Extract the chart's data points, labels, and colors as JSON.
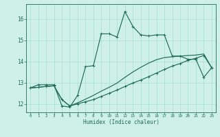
{
  "xlabel": "Humidex (Indice chaleur)",
  "bg_color": "#cff0e8",
  "grid_color": "#a8ddd2",
  "line_color": "#1e6b5a",
  "xlim": [
    -0.5,
    23.5
  ],
  "ylim": [
    11.6,
    16.7
  ],
  "xticks": [
    0,
    1,
    2,
    3,
    4,
    5,
    6,
    7,
    8,
    9,
    10,
    11,
    12,
    13,
    14,
    15,
    16,
    17,
    18,
    19,
    20,
    21,
    22,
    23
  ],
  "yticks": [
    12,
    13,
    14,
    15,
    16
  ],
  "line1_x": [
    0,
    1,
    2,
    3,
    4,
    5,
    6,
    7,
    8,
    9,
    10,
    11,
    12,
    13,
    14,
    15,
    16,
    17,
    18,
    19,
    20,
    21,
    22,
    23
  ],
  "line1_y": [
    12.75,
    12.9,
    12.9,
    12.9,
    11.9,
    11.85,
    12.4,
    13.75,
    13.8,
    15.3,
    15.3,
    15.15,
    16.35,
    15.65,
    15.25,
    15.2,
    15.25,
    15.25,
    14.25,
    14.25,
    14.1,
    14.1,
    13.25,
    13.7
  ],
  "line2_x": [
    0,
    1,
    2,
    3,
    4,
    5,
    6,
    7,
    8,
    9,
    10,
    11,
    12,
    13,
    14,
    15,
    16,
    17,
    18,
    19,
    20,
    21,
    22,
    23
  ],
  "line2_y": [
    12.75,
    12.78,
    12.82,
    12.85,
    12.2,
    11.9,
    12.0,
    12.1,
    12.2,
    12.35,
    12.5,
    12.65,
    12.82,
    12.98,
    13.12,
    13.28,
    13.45,
    13.62,
    13.78,
    13.9,
    14.05,
    14.15,
    14.28,
    13.7
  ],
  "line3_x": [
    0,
    1,
    2,
    3,
    4,
    5,
    6,
    7,
    8,
    9,
    10,
    11,
    12,
    13,
    14,
    15,
    16,
    17,
    18,
    19,
    20,
    21,
    22,
    23
  ],
  "line3_y": [
    12.75,
    12.78,
    12.82,
    12.85,
    12.2,
    11.9,
    12.05,
    12.22,
    12.4,
    12.6,
    12.78,
    12.98,
    13.25,
    13.5,
    13.72,
    13.92,
    14.08,
    14.18,
    14.22,
    14.25,
    14.28,
    14.3,
    14.35,
    13.7
  ]
}
